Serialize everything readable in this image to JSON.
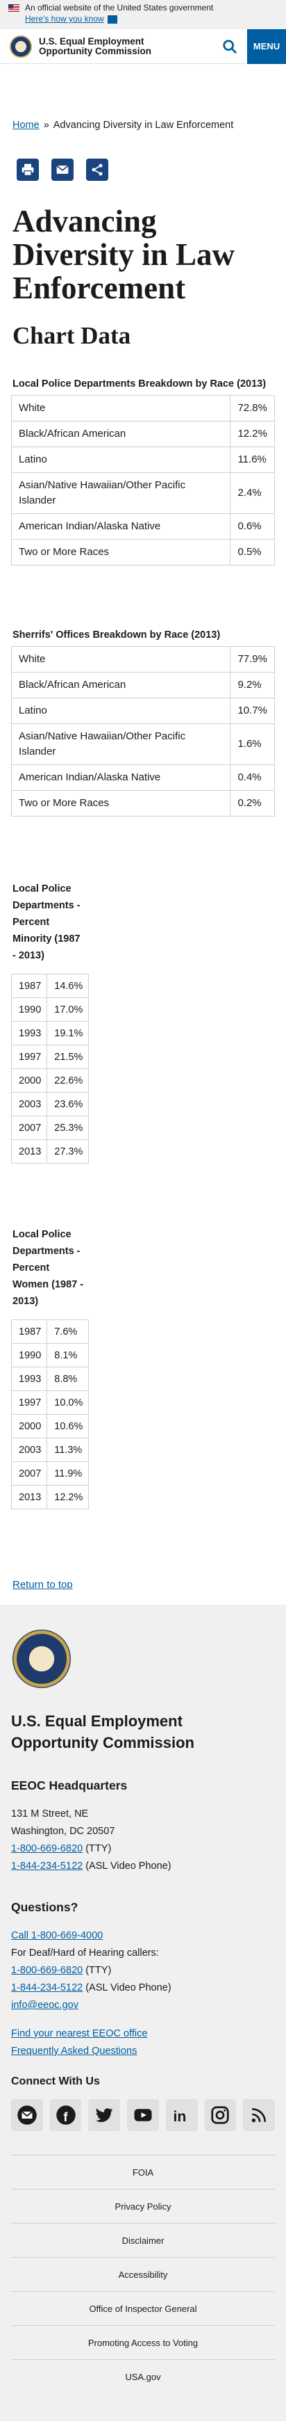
{
  "gov_banner": {
    "text": "An official website of the United States government",
    "how_link": "Here's how you know"
  },
  "header": {
    "title_line1": "U.S. Equal Employment",
    "title_line2": "Opportunity Commission",
    "menu_label": "MENU"
  },
  "breadcrumb": {
    "home": "Home",
    "separator": "»",
    "current": "Advancing Diversity in Law Enforcement"
  },
  "page": {
    "title": "Advancing Diversity in Law Enforcement",
    "section": "Chart Data"
  },
  "police_race": {
    "caption": "Local Police Departments Breakdown by Race (2013)",
    "rows": [
      {
        "label": "White",
        "value": "72.8%"
      },
      {
        "label": "Black/African American",
        "value": "12.2%"
      },
      {
        "label": "Latino",
        "value": "11.6%"
      },
      {
        "label": "Asian/Native Hawaiian/Other Pacific Islander",
        "value": "2.4%"
      },
      {
        "label": "American Indian/Alaska Native",
        "value": "0.6%"
      },
      {
        "label": "Two or More Races",
        "value": "0.5%"
      }
    ]
  },
  "sheriff_race": {
    "caption": "Sherrifs' Offices Breakdown by Race (2013)",
    "rows": [
      {
        "label": "White",
        "value": "77.9%"
      },
      {
        "label": "Black/African American",
        "value": "9.2%"
      },
      {
        "label": "Latino",
        "value": "10.7%"
      },
      {
        "label": "Asian/Native Hawaiian/Other Pacific Islander",
        "value": "1.6%"
      },
      {
        "label": "American Indian/Alaska Native",
        "value": "0.4%"
      },
      {
        "label": "Two or More Races",
        "value": "0.2%"
      }
    ]
  },
  "minority": {
    "caption": "Local Police Departments - Percent Minority (1987 - 2013)",
    "rows": [
      {
        "year": "1987",
        "value": "14.6%"
      },
      {
        "year": "1990",
        "value": "17.0%"
      },
      {
        "year": "1993",
        "value": "19.1%"
      },
      {
        "year": "1997",
        "value": "21.5%"
      },
      {
        "year": "2000",
        "value": "22.6%"
      },
      {
        "year": "2003",
        "value": "23.6%"
      },
      {
        "year": "2007",
        "value": "25.3%"
      },
      {
        "year": "2013",
        "value": "27.3%"
      }
    ]
  },
  "women": {
    "caption": "Local Police Departments - Percent Women (1987 - 2013)",
    "rows": [
      {
        "year": "1987",
        "value": "7.6%"
      },
      {
        "year": "1990",
        "value": "8.1%"
      },
      {
        "year": "1993",
        "value": "8.8%"
      },
      {
        "year": "1997",
        "value": "10.0%"
      },
      {
        "year": "2000",
        "value": "10.6%"
      },
      {
        "year": "2003",
        "value": "11.3%"
      },
      {
        "year": "2007",
        "value": "11.9%"
      },
      {
        "year": "2013",
        "value": "12.2%"
      }
    ]
  },
  "return_to_top": "Return to top",
  "footer": {
    "agency_line1": "U.S. Equal Employment",
    "agency_line2": "Opportunity Commission",
    "hq_heading": "EEOC Headquarters",
    "address1": "131 M Street, NE",
    "address2": "Washington, DC 20507",
    "tty_phone": "1-800-669-6820",
    "tty_suffix": " (TTY)",
    "asl_phone": "1-844-234-5122",
    "asl_suffix": " (ASL Video Phone)",
    "questions_heading": "Questions?",
    "call_link": "Call 1-800-669-4000",
    "deaf_text": "For Deaf/Hard of Hearing callers:",
    "tty_phone2": "1-800-669-6820",
    "tty_suffix2": " (TTY)",
    "asl_phone2": "1-844-234-5122",
    "asl_suffix2": " (ASL Video Phone)",
    "email": "info@eeoc.gov",
    "find_office": "Find your nearest EEOC office",
    "faq": "Frequently Asked Questions",
    "connect_heading": "Connect With Us",
    "social_icons": [
      "email-icon",
      "facebook-icon",
      "twitter-icon",
      "youtube-icon",
      "linkedin-icon",
      "instagram-icon",
      "rss-icon"
    ],
    "links": [
      "FOIA",
      "Privacy Policy",
      "Disclaimer",
      "Accessibility",
      "Office of Inspector General",
      "Promoting Access to Voting",
      "USA.gov"
    ]
  },
  "colors": {
    "primary": "#005ea2",
    "share_bg": "#1a4480",
    "banner_bg": "#f0f0f0"
  }
}
